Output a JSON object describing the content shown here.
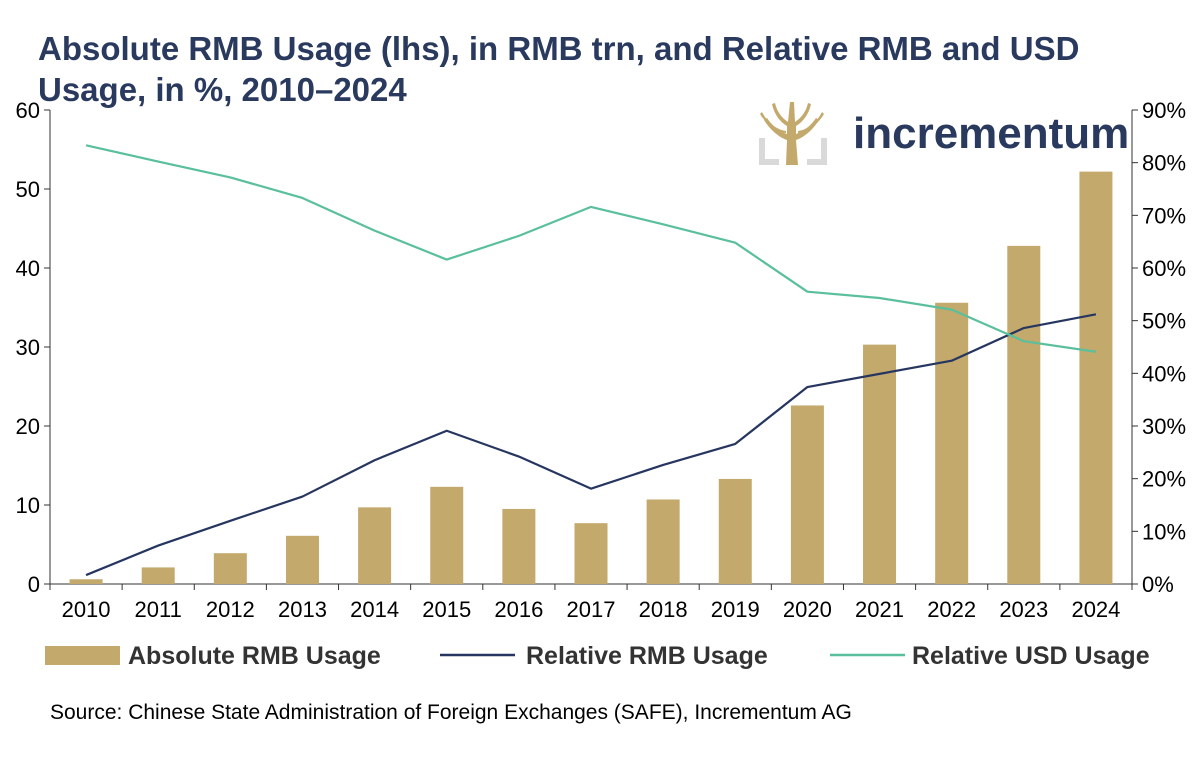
{
  "chart_data": {
    "type": "bar+line",
    "title": "Absolute RMB Usage (lhs), in RMB trn, and Relative RMB and USD Usage, in %, 2010–2024",
    "source": "Source: Chinese State Administration of Foreign Exchanges (SAFE), Incrementum AG",
    "logo_text": "incrementum",
    "categories": [
      "2010",
      "2011",
      "2012",
      "2013",
      "2014",
      "2015",
      "2016",
      "2017",
      "2018",
      "2019",
      "2020",
      "2021",
      "2022",
      "2023",
      "2024"
    ],
    "y_left": {
      "ylim": [
        0,
        60
      ],
      "ticks": [
        "0",
        "10",
        "20",
        "30",
        "40",
        "50",
        "60"
      ]
    },
    "y_right": {
      "ylim": [
        0,
        90
      ],
      "ticks": [
        "0%",
        "10%",
        "20%",
        "30%",
        "40%",
        "50%",
        "60%",
        "70%",
        "80%",
        "90%"
      ]
    },
    "legend_position": "bottom",
    "series": [
      {
        "name": "Absolute RMB Usage",
        "type": "bar",
        "axis": "left",
        "color": "#c3a96c",
        "values": [
          0.6,
          2.1,
          3.9,
          6.1,
          9.7,
          12.3,
          9.5,
          7.7,
          10.7,
          13.3,
          22.6,
          30.3,
          35.6,
          42.8,
          52.2
        ]
      },
      {
        "name": "Relative RMB Usage",
        "type": "line",
        "axis": "right",
        "color": "#263660",
        "values": [
          1.7,
          7.3,
          12.0,
          16.6,
          23.5,
          29.1,
          24.2,
          18.1,
          22.6,
          26.6,
          37.4,
          39.9,
          42.4,
          48.6,
          51.2
        ]
      },
      {
        "name": "Relative USD Usage",
        "type": "line",
        "axis": "right",
        "color": "#5abf9c",
        "values": [
          83.3,
          80.2,
          77.2,
          73.3,
          67.1,
          61.6,
          66.1,
          71.6,
          68.3,
          64.8,
          55.5,
          54.3,
          52.1,
          46.1,
          44.1
        ]
      }
    ]
  }
}
